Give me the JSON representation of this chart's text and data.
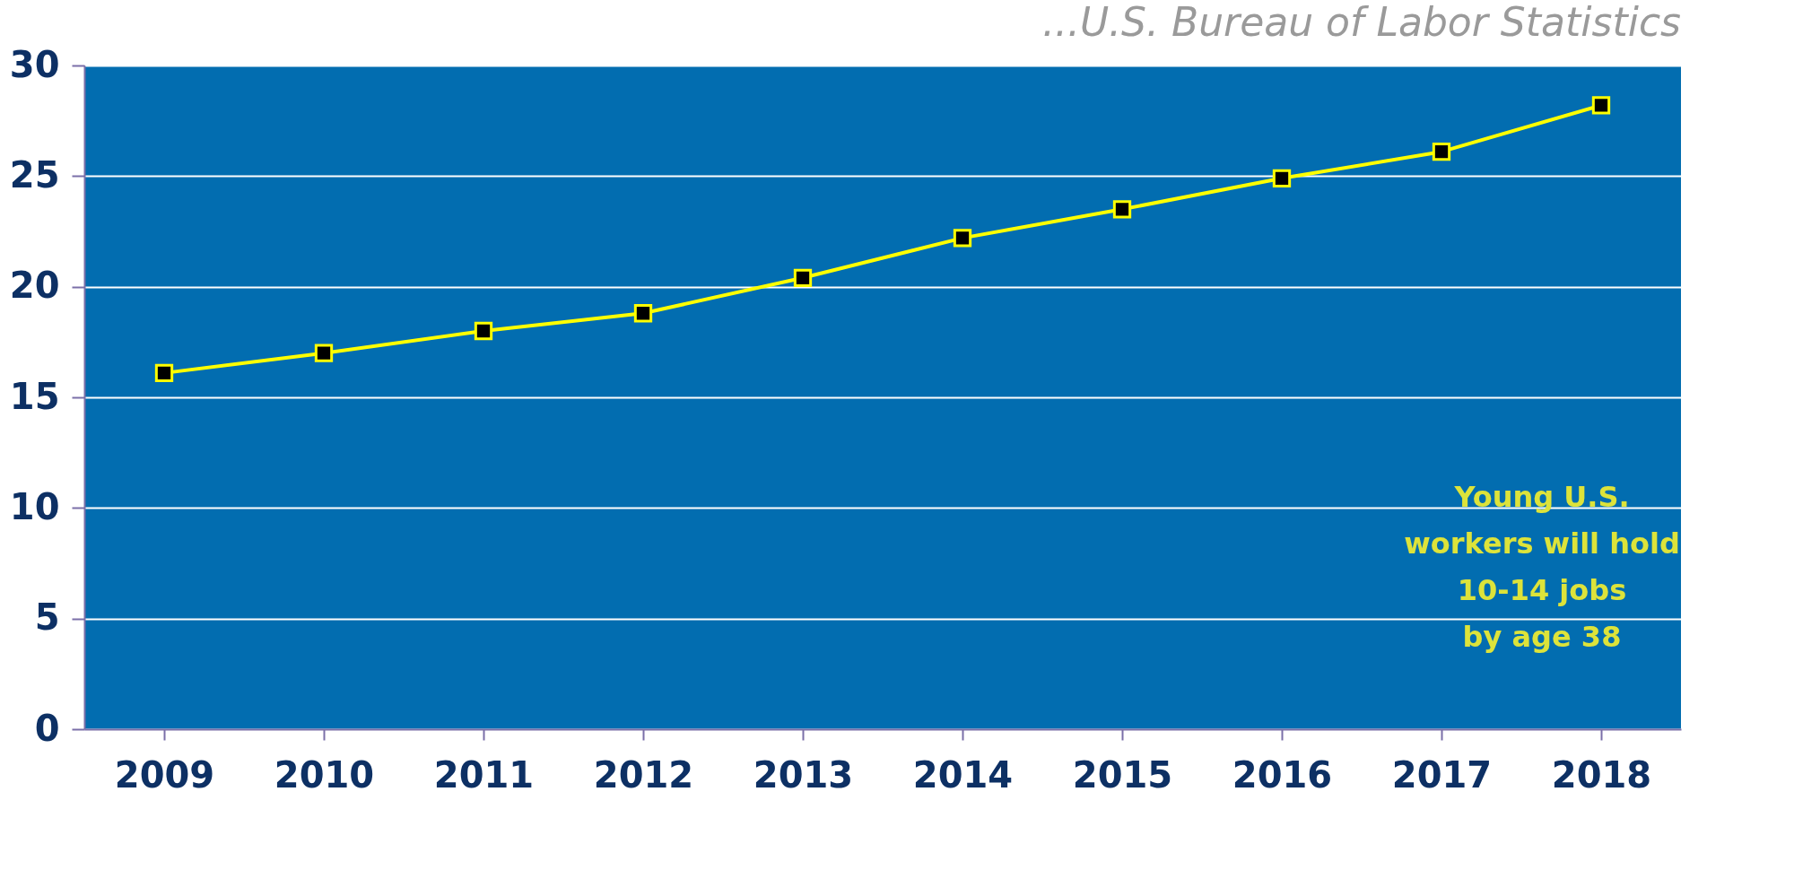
{
  "chart_data": {
    "type": "line",
    "categories": [
      "2009",
      "2010",
      "2011",
      "2012",
      "2013",
      "2014",
      "2015",
      "2016",
      "2017",
      "2018"
    ],
    "series": [
      {
        "color": "#ffff00",
        "values": [
          16.1,
          17.0,
          18.0,
          18.8,
          20.4,
          22.2,
          23.5,
          24.9,
          26.1,
          28.2
        ]
      }
    ],
    "ylim": [
      0,
      30
    ],
    "yticks": [
      0,
      5,
      10,
      15,
      20,
      25,
      30
    ],
    "grid": "y",
    "marker": "square",
    "annotations": [
      "...U.S. Bureau of Labor Statistics",
      "Young U.S.\nworkers will hold\n10-14 jobs\nby age 38"
    ]
  }
}
